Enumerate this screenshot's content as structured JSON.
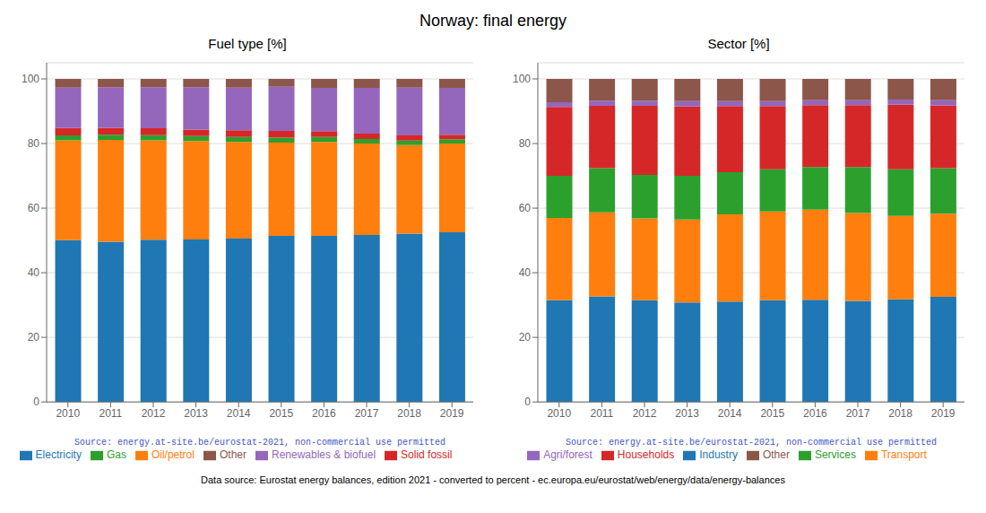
{
  "title": "Norway: final energy",
  "annotations": [
    "Data source: Eurostat energy balances, edition 2021 - converted to percent - ec.europa.eu/eurostat/web/energy/data/energy-balances"
  ],
  "chart_data": [
    {
      "type": "bar",
      "stacked": true,
      "title": "Fuel type [%]",
      "categories": [
        2010,
        2011,
        2012,
        2013,
        2014,
        2015,
        2016,
        2017,
        2018,
        2019
      ],
      "series": [
        {
          "name": "Electricity",
          "color": "#1f77b4",
          "values": [
            50.1,
            49.6,
            50.2,
            50.3,
            50.6,
            51.4,
            51.4,
            51.7,
            52.1,
            52.5
          ]
        },
        {
          "name": "Oil/petrol",
          "color": "#ff7f0e",
          "values": [
            30.9,
            31.5,
            30.8,
            30.5,
            29.9,
            28.9,
            29.1,
            28.3,
            27.4,
            27.5
          ]
        },
        {
          "name": "Gas",
          "color": "#2ca02c",
          "values": [
            1.5,
            1.6,
            1.6,
            1.5,
            1.5,
            1.5,
            1.5,
            1.4,
            1.4,
            1.3
          ]
        },
        {
          "name": "Solid fossil",
          "color": "#d62728",
          "values": [
            2.3,
            2.2,
            2.1,
            2.0,
            2.1,
            2.1,
            1.8,
            1.7,
            1.6,
            1.4
          ]
        },
        {
          "name": "Renewables & biofuel",
          "color": "#9467bd",
          "values": [
            12.5,
            12.5,
            12.7,
            13.1,
            13.2,
            13.7,
            13.4,
            14.1,
            14.8,
            14.5
          ]
        },
        {
          "name": "Other",
          "color": "#8c564b",
          "values": [
            2.7,
            2.6,
            2.6,
            2.6,
            2.7,
            2.4,
            2.8,
            2.8,
            2.7,
            2.8
          ]
        }
      ],
      "ylim": [
        0,
        105
      ],
      "yticks": [
        0,
        20,
        40,
        60,
        80,
        100
      ],
      "grid": true,
      "legend": "bottom",
      "annotations": [
        "Source: energy.at-site.be/eurostat-2021, non-commercial use permitted"
      ]
    },
    {
      "type": "bar",
      "stacked": true,
      "title": "Sector [%]",
      "categories": [
        2010,
        2011,
        2012,
        2013,
        2014,
        2015,
        2016,
        2017,
        2018,
        2019
      ],
      "series": [
        {
          "name": "Industry",
          "color": "#1f77b4",
          "values": [
            31.5,
            32.7,
            31.5,
            30.8,
            31.1,
            31.5,
            31.6,
            31.3,
            31.8,
            32.5
          ]
        },
        {
          "name": "Transport",
          "color": "#ff7f0e",
          "values": [
            25.5,
            26.0,
            25.3,
            25.7,
            27.0,
            27.5,
            27.9,
            27.2,
            25.8,
            25.8
          ]
        },
        {
          "name": "Services",
          "color": "#2ca02c",
          "values": [
            13.0,
            13.7,
            13.5,
            13.5,
            13.0,
            13.0,
            13.2,
            14.2,
            14.4,
            14.1
          ]
        },
        {
          "name": "Households",
          "color": "#d62728",
          "values": [
            21.3,
            19.3,
            21.4,
            21.5,
            20.5,
            19.6,
            19.2,
            19.2,
            20.0,
            19.4
          ]
        },
        {
          "name": "Agri/forest",
          "color": "#9467bd",
          "values": [
            1.5,
            1.6,
            1.5,
            1.6,
            1.5,
            1.5,
            1.5,
            1.5,
            1.6,
            1.6
          ]
        },
        {
          "name": "Other",
          "color": "#8c564b",
          "values": [
            7.2,
            6.7,
            6.8,
            6.9,
            6.9,
            6.9,
            6.6,
            6.6,
            6.4,
            6.6
          ]
        }
      ],
      "ylim": [
        0,
        105
      ],
      "yticks": [
        0,
        20,
        40,
        60,
        80,
        100
      ],
      "grid": true,
      "legend": "bottom",
      "annotations": [
        "Source: energy.at-site.be/eurostat-2021, non-commercial use permitted"
      ]
    }
  ]
}
